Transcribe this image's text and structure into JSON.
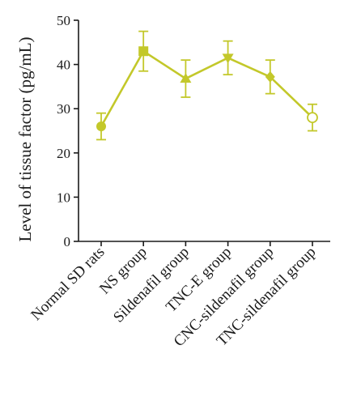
{
  "chart_data": {
    "type": "line",
    "title": "",
    "xlabel": "",
    "ylabel": "Level of tissue factor (pg/mL)",
    "ylim": [
      0,
      50
    ],
    "yticks": [
      0,
      10,
      20,
      30,
      40,
      50
    ],
    "grid": false,
    "legend": "none",
    "line_color": "#c3c82a",
    "categories": [
      "Normal SD rats",
      "NS group",
      "Sildenafil group",
      "TNC-E group",
      "CNC-sildenafil group",
      "TNC-sildenafil group"
    ],
    "values": [
      26,
      43,
      36.8,
      41.5,
      37.2,
      28
    ],
    "error": [
      3,
      4.5,
      4.2,
      3.8,
      3.8,
      3
    ],
    "markers": [
      "circle",
      "square",
      "triangle-up",
      "triangle-down",
      "diamond",
      "open-circle"
    ]
  }
}
